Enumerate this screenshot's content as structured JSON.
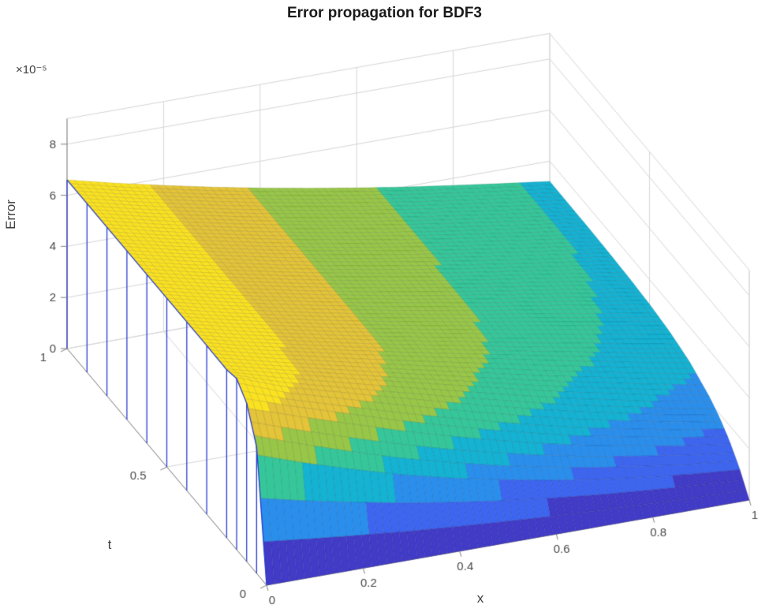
{
  "figure": {
    "background": "#ffffff"
  },
  "chart_data": {
    "type": "surface",
    "title": "Error propagation for BDF3",
    "xlabel": "x",
    "tlabel": "t",
    "zlabel": "Error",
    "z_exponent_label": "×10⁻⁵",
    "view": "3d mesh, MATLAB default view (azimuth -37.5, elevation 30)",
    "grid": true,
    "colormap": "parula",
    "colormap_stops": [
      {
        "pos": 0.0,
        "color": "#3e26a8"
      },
      {
        "pos": 0.14,
        "color": "#4455f0"
      },
      {
        "pos": 0.29,
        "color": "#2e87f1"
      },
      {
        "pos": 0.43,
        "color": "#12b1d6"
      },
      {
        "pos": 0.57,
        "color": "#37c897"
      },
      {
        "pos": 0.71,
        "color": "#abc739"
      },
      {
        "pos": 0.86,
        "color": "#fec338"
      },
      {
        "pos": 1.0,
        "color": "#f9fb0e"
      }
    ],
    "mesh_line_color": "#2b3ecf",
    "axis_line_color": "#808080",
    "axis_text_color": "#4a4a4a",
    "grid_line_color": "#d6d6d6",
    "x_ticks": [
      0,
      0.2,
      0.4,
      0.6,
      0.8,
      1
    ],
    "t_ticks": [
      0,
      0.5,
      1
    ],
    "z_ticks": [
      0,
      2,
      4,
      6,
      8
    ],
    "xlim": [
      0,
      1
    ],
    "tlim": [
      0,
      1
    ],
    "zlim": [
      0,
      9
    ],
    "z_unit_scale": "1e-5",
    "caxis": [
      0,
      6.7
    ],
    "x": [
      0,
      0.1,
      0.2,
      0.3,
      0.4,
      0.5,
      0.6,
      0.7,
      0.8,
      0.9,
      1
    ],
    "t": [
      0,
      0.05,
      0.1,
      0.15,
      0.2,
      0.3,
      0.4,
      0.5,
      0.6,
      0.7,
      0.8,
      0.9,
      1
    ],
    "values_x1e-5": [
      [
        0,
        0,
        0,
        0,
        0,
        0,
        0,
        0,
        0,
        0,
        0
      ],
      [
        4.97,
        4.28,
        3.66,
        3.08,
        2.59,
        2.16,
        1.78,
        1.46,
        1.2,
        0.97,
        0.8
      ],
      [
        6.2,
        5.58,
        4.98,
        4.38,
        3.82,
        3.3,
        2.82,
        2.38,
        2.02,
        1.67,
        1.4
      ],
      [
        6.7,
        5.97,
        5.45,
        4.92,
        4.41,
        3.91,
        3.43,
        2.97,
        2.57,
        2.17,
        1.85
      ],
      [
        6.58,
        6.09,
        5.62,
        5.15,
        4.69,
        4.24,
        3.78,
        3.34,
        2.94,
        2.54,
        2.19
      ],
      [
        6.6,
        6.13,
        5.71,
        5.29,
        4.89,
        4.5,
        4.12,
        3.73,
        3.36,
        2.98,
        2.64
      ],
      [
        6.6,
        6.14,
        5.72,
        5.31,
        4.94,
        4.58,
        4.23,
        3.89,
        3.56,
        3.21,
        2.89
      ],
      [
        6.6,
        6.14,
        5.72,
        5.32,
        4.95,
        4.6,
        4.27,
        3.95,
        3.65,
        3.33,
        3.03
      ],
      [
        6.6,
        6.14,
        5.72,
        5.32,
        4.95,
        4.61,
        4.28,
        3.97,
        3.69,
        3.39,
        3.11
      ],
      [
        6.6,
        6.14,
        5.72,
        5.32,
        4.95,
        4.61,
        4.29,
        3.99,
        3.7,
        3.43,
        3.16
      ],
      [
        6.6,
        6.14,
        5.72,
        5.32,
        4.95,
        4.61,
        4.29,
        3.99,
        3.72,
        3.44,
        3.19
      ],
      [
        6.6,
        6.14,
        5.72,
        5.32,
        4.95,
        4.61,
        4.29,
        3.99,
        3.72,
        3.45,
        3.2
      ],
      [
        6.6,
        6.14,
        5.72,
        5.32,
        4.95,
        4.61,
        4.29,
        3.99,
        3.72,
        3.46,
        3.21
      ]
    ]
  }
}
